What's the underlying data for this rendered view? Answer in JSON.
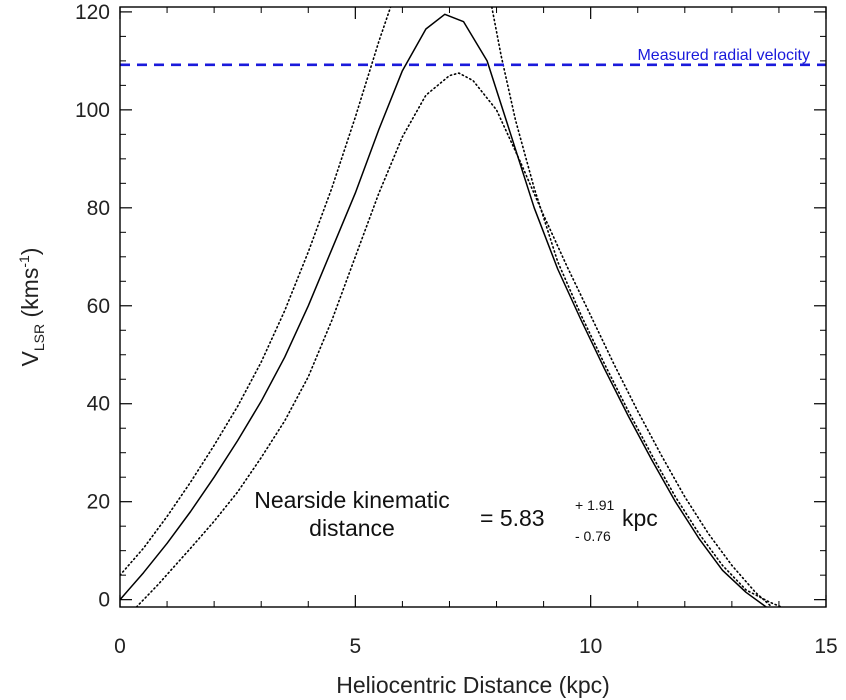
{
  "chart_data": {
    "type": "line",
    "xlabel": "Heliocentric Distance (kpc)",
    "ylabel": {
      "main": "V",
      "sub": "LSR",
      "unit_open": " (kms",
      "unit_sup": "-1",
      "unit_close": ")"
    },
    "xlim": [
      0,
      15
    ],
    "ylim": [
      -1.5,
      121
    ],
    "x_ticks": [
      0,
      5,
      10,
      15
    ],
    "y_ticks": [
      0,
      20,
      40,
      60,
      80,
      100,
      120
    ],
    "grid": false,
    "series": [
      {
        "style": "solid",
        "color": "#000000",
        "x": [
          0,
          0.5,
          1,
          1.5,
          2,
          2.5,
          3,
          3.5,
          4,
          4.5,
          5,
          5.5,
          6,
          6.5,
          6.9,
          7.3,
          7.8,
          8.3,
          8.8,
          9.3,
          9.8,
          10.3,
          10.8,
          11.3,
          11.8,
          12.3,
          12.8,
          13.3,
          13.8
        ],
        "y": [
          0,
          5.5,
          11.5,
          18,
          25,
          32.5,
          40.5,
          49.5,
          60,
          71.5,
          83,
          96,
          108,
          116.5,
          119.5,
          118,
          110,
          95,
          80,
          67.5,
          57,
          47,
          37.5,
          28.5,
          20,
          12.5,
          6,
          1.5,
          -2
        ]
      },
      {
        "style": "dotted",
        "color": "#000000",
        "x": [
          0,
          0.5,
          1,
          1.5,
          2,
          2.5,
          3,
          3.5,
          4,
          4.5,
          5,
          5.5,
          5.75
        ],
        "y": [
          5,
          10.5,
          17,
          24,
          31.5,
          39.5,
          48.5,
          59,
          71,
          84,
          98.5,
          114,
          121
        ]
      },
      {
        "style": "dotted",
        "color": "#000000",
        "x": [
          7.9,
          8.1,
          8.4,
          8.8,
          9.3,
          9.8,
          10.3,
          10.8,
          11.3,
          11.8,
          12.3,
          12.8,
          13.3,
          13.8,
          14.05
        ],
        "y": [
          121,
          111,
          98,
          84,
          69,
          58,
          48,
          38.5,
          29.5,
          21,
          13.5,
          7,
          2,
          -0.5,
          -1.5
        ]
      },
      {
        "style": "dotted",
        "color": "#000000",
        "x": [
          0.35,
          0.8,
          1.5,
          2,
          2.5,
          3,
          3.5,
          4,
          4.5,
          5,
          5.5,
          6,
          6.5,
          7,
          7.2,
          7.5,
          8,
          8.5,
          9,
          9.5,
          10,
          10.5,
          11,
          11.5,
          12,
          12.5,
          13,
          13.5,
          13.85
        ],
        "y": [
          -1.5,
          3,
          10.5,
          16,
          22,
          29,
          36.5,
          45.5,
          57,
          70,
          83,
          94.5,
          103,
          107,
          107.5,
          106,
          100,
          89.5,
          78.5,
          68,
          58,
          48,
          38.5,
          29.5,
          21,
          13.5,
          7,
          1.5,
          -1.5
        ]
      }
    ],
    "reference_line": {
      "y": 109.2,
      "label": "Measured radial velocity",
      "color": "#1a1adb",
      "style": "dashed"
    },
    "annotation": {
      "line1": "Nearside kinematic",
      "line2": "distance",
      "equals_value": "= 5.83",
      "plus": "+ 1.91",
      "minus": "- 0.76",
      "unit": "kpc"
    }
  }
}
